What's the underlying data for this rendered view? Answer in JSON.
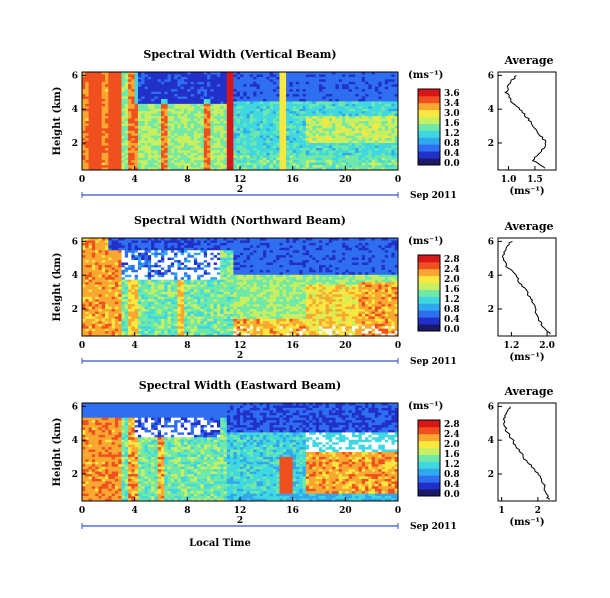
{
  "figure": {
    "xlabel": "Local Time",
    "colorbar_unit": "(ms⁻¹)",
    "profile_unit": "(ms⁻¹)",
    "ylabel": "Height (km)",
    "colors": {
      "colormap": [
        "#1a1a66",
        "#2030c8",
        "#2f6ef0",
        "#30a8f0",
        "#40d8e0",
        "#70e8a8",
        "#c8ef60",
        "#f8e840",
        "#f8a830",
        "#f05020",
        "#d81818"
      ],
      "missing": "#ffffff",
      "date_bar": "#3355cc",
      "text": "#000000"
    }
  },
  "chart_data": [
    {
      "type": "heatmap",
      "title": "Spectral Width (Vertical Beam)",
      "ylabel": "Height (km)",
      "xlabel": "",
      "x_ticks": [
        "0",
        "4",
        "8",
        "12",
        "16",
        "20",
        "0"
      ],
      "y_ticks": [
        "6",
        "4",
        "2"
      ],
      "xlim_hours": [
        0,
        24
      ],
      "ylim_km": [
        0.4,
        6.2
      ],
      "date_label": "Sep 2011",
      "date_bar_mid": "2",
      "colorbar": {
        "ticks": [
          "3.6",
          "3.4",
          "3.0",
          "1.6",
          "1.2",
          "0.8",
          "0.4",
          "0.0"
        ],
        "range": [
          0,
          3.8
        ]
      },
      "profile": {
        "title": "Average",
        "xticks": [
          "1.0",
          "1.5"
        ],
        "xlim": [
          0.8,
          1.9
        ],
        "ylim_km": [
          0.4,
          6.2
        ],
        "y_ticks": [
          "6",
          "4",
          "2"
        ],
        "height_km": [
          0.5,
          1.0,
          1.5,
          2.0,
          2.5,
          3.0,
          3.5,
          4.0,
          4.5,
          5.0,
          5.5,
          6.0
        ],
        "value": [
          1.7,
          1.45,
          1.62,
          1.72,
          1.6,
          1.48,
          1.35,
          1.2,
          1.05,
          0.95,
          1.0,
          1.15
        ]
      }
    },
    {
      "type": "heatmap",
      "title": "Spectral Width (Northward Beam)",
      "ylabel": "Height (km)",
      "xlabel": "",
      "x_ticks": [
        "0",
        "4",
        "8",
        "12",
        "16",
        "20",
        "0"
      ],
      "y_ticks": [
        "6",
        "4",
        "2"
      ],
      "xlim_hours": [
        0,
        24
      ],
      "ylim_km": [
        0.4,
        6.2
      ],
      "date_label": "Sep 2011",
      "date_bar_mid": "2",
      "colorbar": {
        "ticks": [
          "2.8",
          "2.4",
          "2.0",
          "1.6",
          "1.2",
          "0.8",
          "0.4",
          "0.0"
        ],
        "range": [
          0,
          3.0
        ]
      },
      "profile": {
        "title": "Average",
        "xticks": [
          "1.2",
          "2.0"
        ],
        "xlim": [
          0.9,
          2.2
        ],
        "ylim_km": [
          0.4,
          6.2
        ],
        "y_ticks": [
          "6",
          "4",
          "2"
        ],
        "height_km": [
          0.5,
          1.0,
          1.5,
          2.0,
          2.5,
          3.0,
          3.5,
          4.0,
          4.5,
          5.0,
          5.5,
          6.0
        ],
        "value": [
          2.1,
          1.9,
          1.78,
          1.75,
          1.65,
          1.55,
          1.4,
          1.3,
          1.1,
          1.0,
          1.05,
          1.2
        ]
      }
    },
    {
      "type": "heatmap",
      "title": "Spectral Width (Eastward Beam)",
      "ylabel": "Height (km)",
      "xlabel": "Local Time",
      "x_ticks": [
        "0",
        "4",
        "8",
        "12",
        "16",
        "20",
        "0"
      ],
      "y_ticks": [
        "6",
        "4",
        "2"
      ],
      "xlim_hours": [
        0,
        24
      ],
      "ylim_km": [
        0.4,
        6.2
      ],
      "date_label": "Sep 2011",
      "date_bar_mid": "2",
      "colorbar": {
        "ticks": [
          "2.8",
          "2.4",
          "2.0",
          "1.6",
          "1.2",
          "0.8",
          "0.4",
          "0.0"
        ],
        "range": [
          0,
          3.0
        ]
      },
      "profile": {
        "title": "Average",
        "xticks": [
          "1",
          "2"
        ],
        "xlim": [
          0.9,
          2.5
        ],
        "ylim_km": [
          0.4,
          6.2
        ],
        "y_ticks": [
          "6",
          "4",
          "2"
        ],
        "height_km": [
          0.5,
          1.0,
          1.5,
          2.0,
          2.5,
          3.0,
          3.5,
          4.0,
          4.5,
          5.0,
          5.5,
          6.0
        ],
        "value": [
          2.3,
          2.2,
          2.15,
          2.0,
          1.8,
          1.6,
          1.45,
          1.3,
          1.15,
          1.05,
          1.1,
          1.25
        ]
      }
    }
  ]
}
